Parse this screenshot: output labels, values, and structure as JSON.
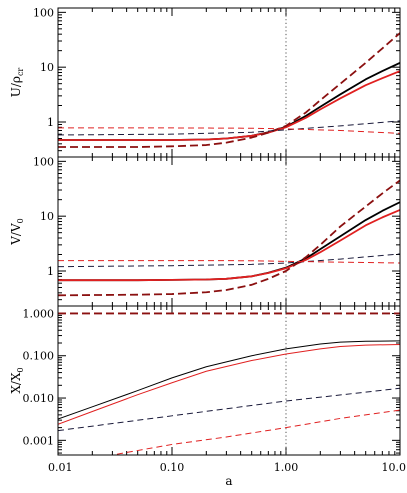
{
  "chart_data": [
    {
      "type": "line",
      "ylabel": "U/ρ",
      "ylabel_sub": "cr",
      "xscale": "log",
      "yscale": "log",
      "xlim": [
        0.01,
        10.0
      ],
      "ylim": [
        0.23,
        120
      ],
      "yticks": [
        1,
        10,
        100
      ],
      "ytick_labels": [
        "1",
        "10",
        "100"
      ],
      "vline": 1.0,
      "series": [
        {
          "color": "#000000",
          "dash": "solid",
          "width": "thick",
          "x": [
            0.01,
            0.05,
            0.1,
            0.2,
            0.3,
            0.5,
            0.7,
            1.0,
            1.5,
            2,
            3,
            5,
            7,
            10
          ],
          "y": [
            0.47,
            0.47,
            0.47,
            0.48,
            0.5,
            0.56,
            0.65,
            0.82,
            1.3,
            1.9,
            3.2,
            6.0,
            8.5,
            12.0
          ]
        },
        {
          "color": "#e02020",
          "dash": "solid",
          "width": "thick",
          "x": [
            0.01,
            0.05,
            0.1,
            0.2,
            0.3,
            0.5,
            0.7,
            1.0,
            1.5,
            2,
            3,
            5,
            7,
            10
          ],
          "y": [
            0.47,
            0.47,
            0.47,
            0.48,
            0.5,
            0.56,
            0.64,
            0.8,
            1.2,
            1.7,
            2.7,
            4.7,
            6.3,
            8.5
          ]
        },
        {
          "color": "#8b1010",
          "dash": "dashed",
          "width": "thick",
          "x": [
            0.01,
            0.05,
            0.1,
            0.2,
            0.3,
            0.5,
            0.7,
            1.0,
            1.5,
            2,
            3,
            5,
            7,
            10
          ],
          "y": [
            0.35,
            0.35,
            0.36,
            0.38,
            0.42,
            0.52,
            0.64,
            0.85,
            1.5,
            2.5,
            5.0,
            12.0,
            22.0,
            42.0
          ]
        },
        {
          "color": "#1a1a3a",
          "dash": "dashed",
          "width": "thin",
          "x": [
            0.01,
            0.1,
            0.5,
            1.0,
            3,
            10
          ],
          "y": [
            0.58,
            0.6,
            0.65,
            0.72,
            0.85,
            1.05
          ]
        },
        {
          "color": "#e02020",
          "dash": "dashed",
          "width": "thin",
          "x": [
            0.01,
            0.1,
            0.5,
            1.0,
            3,
            10
          ],
          "y": [
            0.78,
            0.78,
            0.77,
            0.75,
            0.7,
            0.62
          ]
        }
      ]
    },
    {
      "type": "line",
      "ylabel": "V/V",
      "ylabel_sub": "0",
      "xscale": "log",
      "yscale": "log",
      "xlim": [
        0.01,
        10.0
      ],
      "ylim": [
        0.23,
        120
      ],
      "yticks": [
        1,
        10,
        100
      ],
      "ytick_labels": [
        "1",
        "10",
        "100"
      ],
      "vline": 1.0,
      "series": [
        {
          "color": "#000000",
          "dash": "solid",
          "width": "thick",
          "x": [
            0.01,
            0.05,
            0.1,
            0.2,
            0.3,
            0.5,
            0.7,
            1.0,
            1.5,
            2,
            3,
            5,
            7,
            10
          ],
          "y": [
            0.68,
            0.68,
            0.69,
            0.7,
            0.72,
            0.8,
            0.93,
            1.15,
            1.7,
            2.5,
            4.3,
            8.5,
            12.5,
            18.0
          ]
        },
        {
          "color": "#e02020",
          "dash": "solid",
          "width": "thick",
          "x": [
            0.01,
            0.05,
            0.1,
            0.2,
            0.3,
            0.5,
            0.7,
            1.0,
            1.5,
            2,
            3,
            5,
            7,
            10
          ],
          "y": [
            0.68,
            0.68,
            0.69,
            0.7,
            0.72,
            0.8,
            0.92,
            1.12,
            1.6,
            2.2,
            3.6,
            6.8,
            9.5,
            13.0
          ]
        },
        {
          "color": "#8b1010",
          "dash": "dashed",
          "width": "thick",
          "x": [
            0.01,
            0.05,
            0.1,
            0.2,
            0.3,
            0.5,
            0.7,
            1.0,
            1.5,
            2,
            3,
            5,
            7,
            10
          ],
          "y": [
            0.36,
            0.37,
            0.38,
            0.41,
            0.45,
            0.56,
            0.72,
            1.0,
            1.8,
            3.0,
            6.5,
            15.0,
            26.0,
            45.0
          ]
        },
        {
          "color": "#1a1a3a",
          "dash": "dashed",
          "width": "thin",
          "x": [
            0.01,
            0.1,
            0.5,
            1.0,
            3,
            10
          ],
          "y": [
            1.2,
            1.25,
            1.32,
            1.4,
            1.65,
            2.05
          ]
        },
        {
          "color": "#e02020",
          "dash": "dashed",
          "width": "thin",
          "x": [
            0.01,
            0.1,
            0.5,
            1.0,
            3,
            10
          ],
          "y": [
            1.55,
            1.55,
            1.54,
            1.5,
            1.45,
            1.4
          ]
        }
      ]
    },
    {
      "type": "line",
      "ylabel": "X/X",
      "ylabel_sub": "0",
      "xlabel": "a",
      "xscale": "log",
      "yscale": "log",
      "xlim": [
        0.01,
        10.0
      ],
      "ylim": [
        0.00045,
        1.5
      ],
      "yticks": [
        0.001,
        0.01,
        0.1,
        1.0
      ],
      "ytick_labels": [
        "0.001",
        "0.010",
        "0.100",
        "1.000"
      ],
      "xticks": [
        0.01,
        0.1,
        1.0,
        10.0
      ],
      "xtick_labels": [
        "0.01",
        "0.10",
        "1.00",
        "10.0"
      ],
      "vline": 1.0,
      "series": [
        {
          "color": "#000000",
          "dash": "solid",
          "width": "thin",
          "x": [
            0.01,
            0.02,
            0.05,
            0.1,
            0.2,
            0.5,
            1.0,
            2,
            3,
            5,
            10
          ],
          "y": [
            0.0032,
            0.0062,
            0.015,
            0.03,
            0.055,
            0.1,
            0.145,
            0.19,
            0.21,
            0.22,
            0.225
          ]
        },
        {
          "color": "#e02020",
          "dash": "solid",
          "width": "thin",
          "x": [
            0.01,
            0.02,
            0.05,
            0.1,
            0.2,
            0.5,
            1.0,
            2,
            3,
            5,
            10
          ],
          "y": [
            0.0024,
            0.0048,
            0.012,
            0.023,
            0.043,
            0.077,
            0.11,
            0.145,
            0.165,
            0.178,
            0.185
          ]
        },
        {
          "color": "#8b1010",
          "dash": "dashed",
          "width": "thick",
          "x": [
            0.01,
            10
          ],
          "y": [
            1.0,
            1.0
          ]
        },
        {
          "color": "#1a1a3a",
          "dash": "dashed",
          "width": "thin",
          "x": [
            0.01,
            0.1,
            1.0,
            10
          ],
          "y": [
            0.0017,
            0.0038,
            0.0085,
            0.017
          ]
        },
        {
          "color": "#e02020",
          "dash": "dashed",
          "width": "thin",
          "x": [
            0.01,
            0.03,
            0.1,
            0.3,
            1.0,
            3,
            10
          ],
          "y": [
            0.00026,
            0.00045,
            0.0008,
            0.0012,
            0.002,
            0.0033,
            0.0052
          ]
        }
      ]
    }
  ]
}
